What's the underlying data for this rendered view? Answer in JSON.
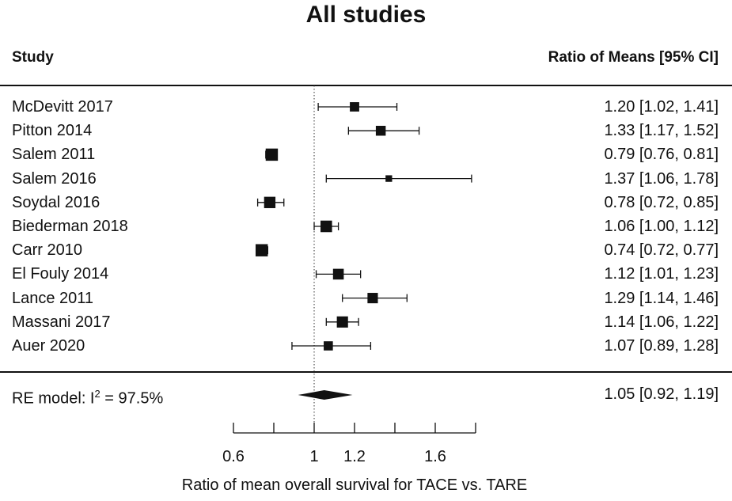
{
  "chart_data": {
    "type": "forest",
    "title": "All studies",
    "columns": {
      "study": "Study",
      "estimate": "Ratio of Means [95% CI]"
    },
    "xlabel": "Ratio of mean overall survival for TACE vs. TARE",
    "xlim": [
      0.6,
      1.8
    ],
    "xticks": [
      0.6,
      0.8,
      1.0,
      1.2,
      1.4,
      1.6,
      1.8
    ],
    "xtick_labels": [
      {
        "value": 0.6,
        "label": "0.6"
      },
      {
        "value": 1.0,
        "label": "1"
      },
      {
        "value": 1.2,
        "label": "1.2"
      },
      {
        "value": 1.6,
        "label": "1.6"
      }
    ],
    "reference_line": 1.0,
    "studies": [
      {
        "name": "McDevitt 2017",
        "est": 1.2,
        "lo": 1.02,
        "hi": 1.41,
        "text": "1.20 [1.02, 1.41]",
        "weight": 0.62
      },
      {
        "name": "Pitton 2014",
        "est": 1.33,
        "lo": 1.17,
        "hi": 1.52,
        "text": "1.33 [1.17, 1.52]",
        "weight": 0.68
      },
      {
        "name": "Salem 2011",
        "est": 0.79,
        "lo": 0.76,
        "hi": 0.81,
        "text": "0.79 [0.76, 0.81]",
        "weight": 0.95
      },
      {
        "name": "Salem 2016",
        "est": 1.37,
        "lo": 1.06,
        "hi": 1.78,
        "text": "1.37 [1.06, 1.78]",
        "weight": 0.3
      },
      {
        "name": "Soydal 2016",
        "est": 0.78,
        "lo": 0.72,
        "hi": 0.85,
        "text": "0.78 [0.72, 0.85]",
        "weight": 0.85
      },
      {
        "name": "Biederman 2018",
        "est": 1.06,
        "lo": 1.0,
        "hi": 1.12,
        "text": "1.06 [1.00, 1.12]",
        "weight": 0.87
      },
      {
        "name": "Carr 2010",
        "est": 0.74,
        "lo": 0.72,
        "hi": 0.77,
        "text": "0.74 [0.72, 0.77]",
        "weight": 0.95
      },
      {
        "name": "El Fouly 2014",
        "est": 1.12,
        "lo": 1.01,
        "hi": 1.23,
        "text": "1.12 [1.01, 1.23]",
        "weight": 0.78
      },
      {
        "name": "Lance 2011",
        "est": 1.29,
        "lo": 1.14,
        "hi": 1.46,
        "text": "1.29 [1.14, 1.46]",
        "weight": 0.74
      },
      {
        "name": "Massani 2017",
        "est": 1.14,
        "lo": 1.06,
        "hi": 1.22,
        "text": "1.14 [1.06, 1.22]",
        "weight": 0.83
      },
      {
        "name": "Auer 2020",
        "est": 1.07,
        "lo": 0.89,
        "hi": 1.28,
        "text": "1.07 [0.89, 1.28]",
        "weight": 0.6
      }
    ],
    "summary": {
      "label_prefix": "RE model: I",
      "label_sup": "2",
      "label_suffix": " = 97.5%",
      "est": 1.05,
      "lo": 0.92,
      "hi": 1.19,
      "text": "1.05 [0.92, 1.19]"
    }
  }
}
